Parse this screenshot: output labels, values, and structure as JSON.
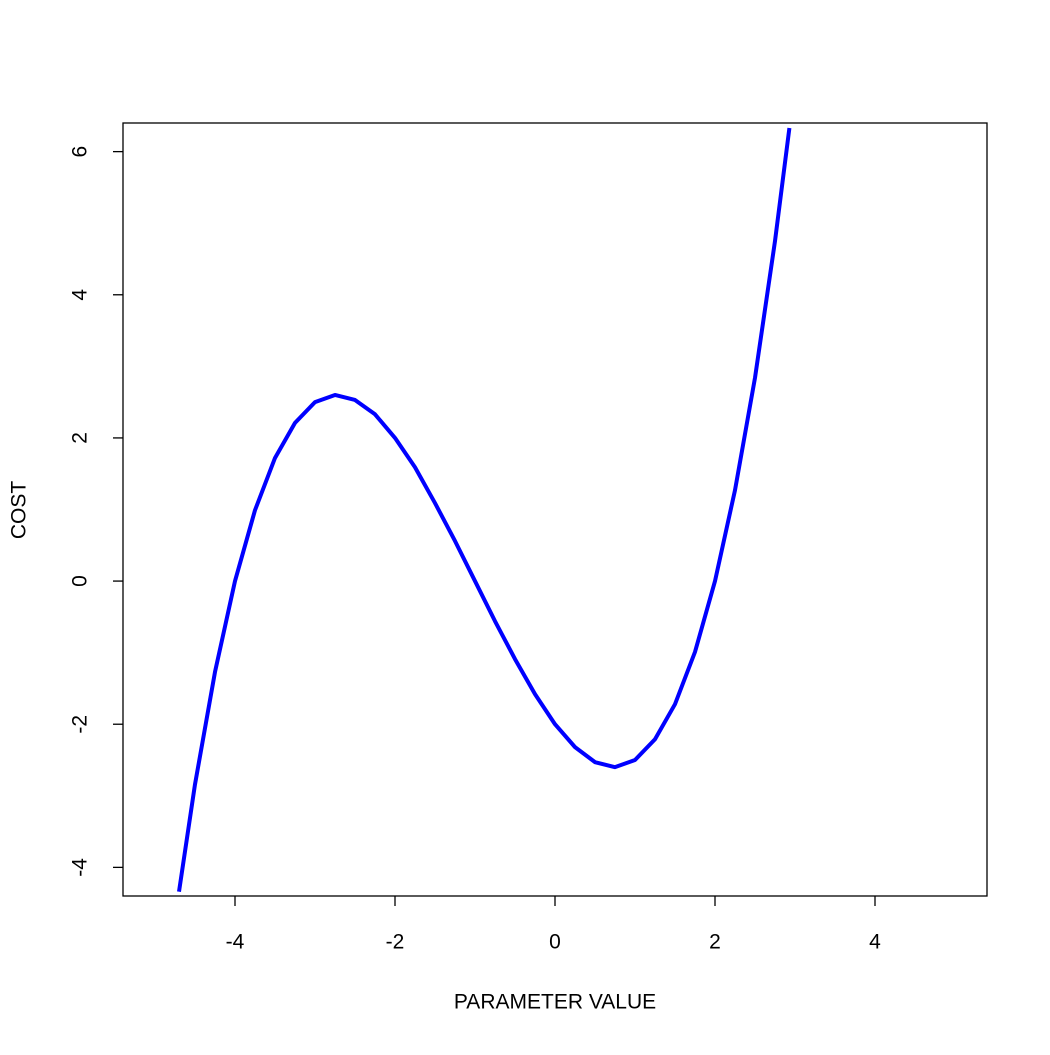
{
  "chart_data": {
    "type": "line",
    "x_label": "PARAMETER VALUE",
    "y_label": "COST",
    "x": [
      -4.7,
      -4.5,
      -4.25,
      -4,
      -3.75,
      -3.5,
      -3.25,
      -3,
      -2.75,
      -2.5,
      -2.25,
      -2,
      -1.75,
      -1.5,
      -1.25,
      -1,
      -0.75,
      -0.5,
      -0.25,
      0,
      0.25,
      0.5,
      0.75,
      1,
      1.25,
      1.5,
      1.75,
      2,
      2.25,
      2.5,
      2.75,
      2.93
    ],
    "series": [
      {
        "color": "#0000ff",
        "values": [
          -4.34,
          -2.84,
          -1.27,
          0,
          0.99,
          1.72,
          2.21,
          2.5,
          2.6,
          2.53,
          2.33,
          2,
          1.59,
          1.09,
          0.56,
          0,
          -0.56,
          -1.09,
          -1.58,
          -2,
          -2.32,
          -2.53,
          -2.6,
          -2.5,
          -2.21,
          -1.72,
          -0.99,
          0,
          1.27,
          2.84,
          4.75,
          6.33
        ]
      }
    ],
    "xlim": [
      -5.4,
      5.4
    ],
    "ylim": [
      -4.4,
      6.4
    ],
    "xticks": [
      -4,
      -2,
      0,
      2,
      4
    ],
    "yticks": [
      -4,
      -2,
      0,
      2,
      4,
      6
    ],
    "grid": false
  }
}
